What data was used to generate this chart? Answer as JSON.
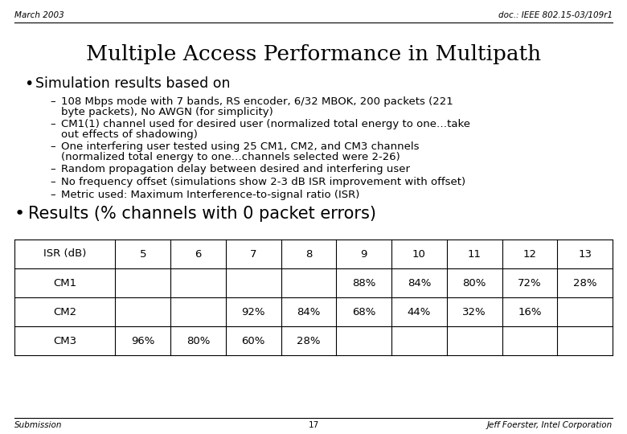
{
  "header_left": "March 2003",
  "header_right": "doc.: IEEE 802.15-03/109r1",
  "title": "Multiple Access Performance in Multipath",
  "bullet1": "Simulation results based on",
  "sub_bullets_line1": [
    "108 Mbps mode with 7 bands, RS encoder, 6/32 MBOK, 200 packets (221",
    "CM1(1) channel used for desired user (normalized total energy to one…take",
    "One interfering user tested using 25 CM1, CM2, and CM3 channels",
    "Random propagation delay between desired and interfering user",
    "No frequency offset (simulations show 2-3 dB ISR improvement with offset)",
    "Metric used: Maximum Interference-to-signal ratio (ISR)"
  ],
  "sub_bullets_line2": [
    "byte packets), No AWGN (for simplicity)",
    "out effects of shadowing)",
    "(normalized total energy to one…channels selected were 2-26)",
    "",
    "",
    ""
  ],
  "bullet2": "Results (% channels with 0 packet errors)",
  "table_headers": [
    "ISR (dB)",
    "5",
    "6",
    "7",
    "8",
    "9",
    "10",
    "11",
    "12",
    "13"
  ],
  "table_rows": [
    [
      "CM1",
      "",
      "",
      "",
      "",
      "88%",
      "84%",
      "80%",
      "72%",
      "28%"
    ],
    [
      "CM2",
      "",
      "",
      "92%",
      "84%",
      "68%",
      "44%",
      "32%",
      "16%",
      ""
    ],
    [
      "CM3",
      "96%",
      "80%",
      "60%",
      "28%",
      "",
      "",
      "",
      "",
      ""
    ]
  ],
  "footer_left": "Submission",
  "footer_center": "17",
  "footer_right": "Jeff Foerster, Intel Corporation",
  "bg_color": "#ffffff",
  "text_color": "#000000"
}
